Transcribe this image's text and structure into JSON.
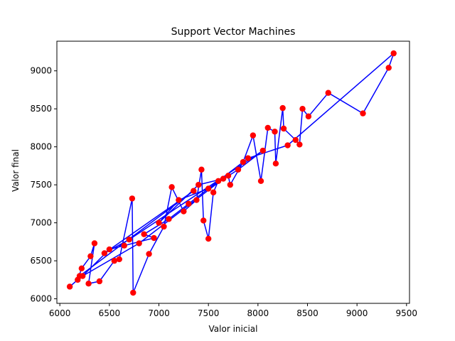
{
  "chart_data": {
    "type": "scatter",
    "title": "Support Vector Machines",
    "xlabel": "Valor inicial",
    "ylabel": "Valor final",
    "xlim": [
      5970,
      9530
    ],
    "ylim": [
      5940,
      9390
    ],
    "xticks": [
      6000,
      6500,
      7000,
      7500,
      8000,
      8500,
      9000,
      9500
    ],
    "yticks": [
      6000,
      6500,
      7000,
      7500,
      8000,
      8500,
      9000
    ],
    "xtick_labels": [
      "6000",
      "6500",
      "7000",
      "7500",
      "8000",
      "8500",
      "9000",
      "9500"
    ],
    "ytick_labels": [
      "6000",
      "6500",
      "7000",
      "7500",
      "8000",
      "8500",
      "9000"
    ],
    "grid": false,
    "legend": "none",
    "colors": {
      "points": "#ff0000",
      "line": "#0000ff"
    },
    "series": [
      {
        "points": [
          [
            6100,
            6160
          ],
          [
            6180,
            6250
          ],
          [
            6220,
            6400
          ],
          [
            6310,
            6560
          ],
          [
            6350,
            6730
          ],
          [
            6290,
            6200
          ],
          [
            6400,
            6230
          ],
          [
            6550,
            6500
          ],
          [
            6600,
            6520
          ],
          [
            6730,
            7320
          ],
          [
            6740,
            6080
          ],
          [
            6900,
            6590
          ],
          [
            7050,
            6950
          ],
          [
            7130,
            7470
          ],
          [
            7250,
            7150
          ],
          [
            7380,
            7300
          ],
          [
            7430,
            7700
          ],
          [
            7450,
            7030
          ],
          [
            7500,
            6790
          ],
          [
            7550,
            7400
          ],
          [
            7600,
            7550
          ],
          [
            7700,
            7620
          ],
          [
            7720,
            7500
          ],
          [
            7850,
            7800
          ],
          [
            7950,
            8150
          ],
          [
            8030,
            7550
          ],
          [
            8100,
            8250
          ],
          [
            8170,
            8200
          ],
          [
            8180,
            7780
          ],
          [
            8250,
            8510
          ],
          [
            8260,
            8240
          ],
          [
            8380,
            8090
          ],
          [
            8420,
            8030
          ],
          [
            8450,
            8500
          ],
          [
            8510,
            8400
          ],
          [
            8710,
            8710
          ],
          [
            9060,
            8440
          ],
          [
            9320,
            9040
          ],
          [
            9370,
            9230
          ],
          [
            8300,
            8020
          ],
          [
            7900,
            7850
          ],
          [
            7300,
            7250
          ],
          [
            7100,
            7050
          ],
          [
            6850,
            6850
          ],
          [
            6950,
            6800
          ],
          [
            6650,
            6700
          ],
          [
            6500,
            6650
          ],
          [
            6230,
            6300
          ],
          [
            6800,
            6730
          ],
          [
            7650,
            7580
          ],
          [
            7400,
            7500
          ],
          [
            7000,
            7000
          ],
          [
            7200,
            7300
          ],
          [
            7500,
            7450
          ],
          [
            7800,
            7700
          ],
          [
            8050,
            7950
          ],
          [
            6700,
            6780
          ],
          [
            6450,
            6600
          ],
          [
            7350,
            7420
          ],
          [
            6200,
            6300
          ]
        ]
      }
    ]
  }
}
